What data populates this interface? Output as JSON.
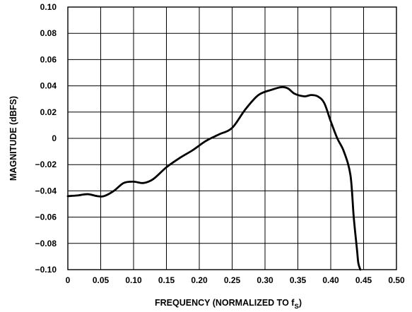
{
  "chart_data": {
    "type": "line",
    "xlabel": "FREQUENCY (NORMALIZED TO f",
    "xlabel_subscript": "S",
    "xlabel_suffix": ")",
    "ylabel": "MAGNITUDE (dBFS)",
    "xlim": [
      0,
      0.5
    ],
    "ylim": [
      -0.1,
      0.1
    ],
    "grid": true,
    "x_ticks": [
      "0",
      "0.05",
      "0.10",
      "0.15",
      "0.20",
      "0.25",
      "0.30",
      "0.35",
      "0.40",
      "0.45",
      "0.50"
    ],
    "y_ticks": [
      "0.10",
      "0.08",
      "0.06",
      "0.04",
      "0.02",
      "0",
      "−0.02",
      "−0.04",
      "−0.06",
      "−0.08",
      "−0.10"
    ],
    "series": [
      {
        "x": [
          0,
          0.015,
          0.03,
          0.045,
          0.055,
          0.07,
          0.085,
          0.1,
          0.115,
          0.13,
          0.15,
          0.17,
          0.19,
          0.21,
          0.23,
          0.25,
          0.27,
          0.29,
          0.31,
          0.325,
          0.335,
          0.345,
          0.36,
          0.37,
          0.38,
          0.39,
          0.4,
          0.41,
          0.42,
          0.43,
          0.435,
          0.44,
          0.442,
          0.445
        ],
        "y": [
          -0.044,
          -0.0435,
          -0.0425,
          -0.044,
          -0.044,
          -0.04,
          -0.034,
          -0.033,
          -0.034,
          -0.031,
          -0.022,
          -0.015,
          -0.009,
          -0.002,
          0.003,
          0.008,
          0.022,
          0.033,
          0.037,
          0.039,
          0.038,
          0.034,
          0.032,
          0.033,
          0.032,
          0.027,
          0.013,
          0.0,
          -0.01,
          -0.028,
          -0.06,
          -0.085,
          -0.095,
          -0.1
        ]
      }
    ]
  }
}
